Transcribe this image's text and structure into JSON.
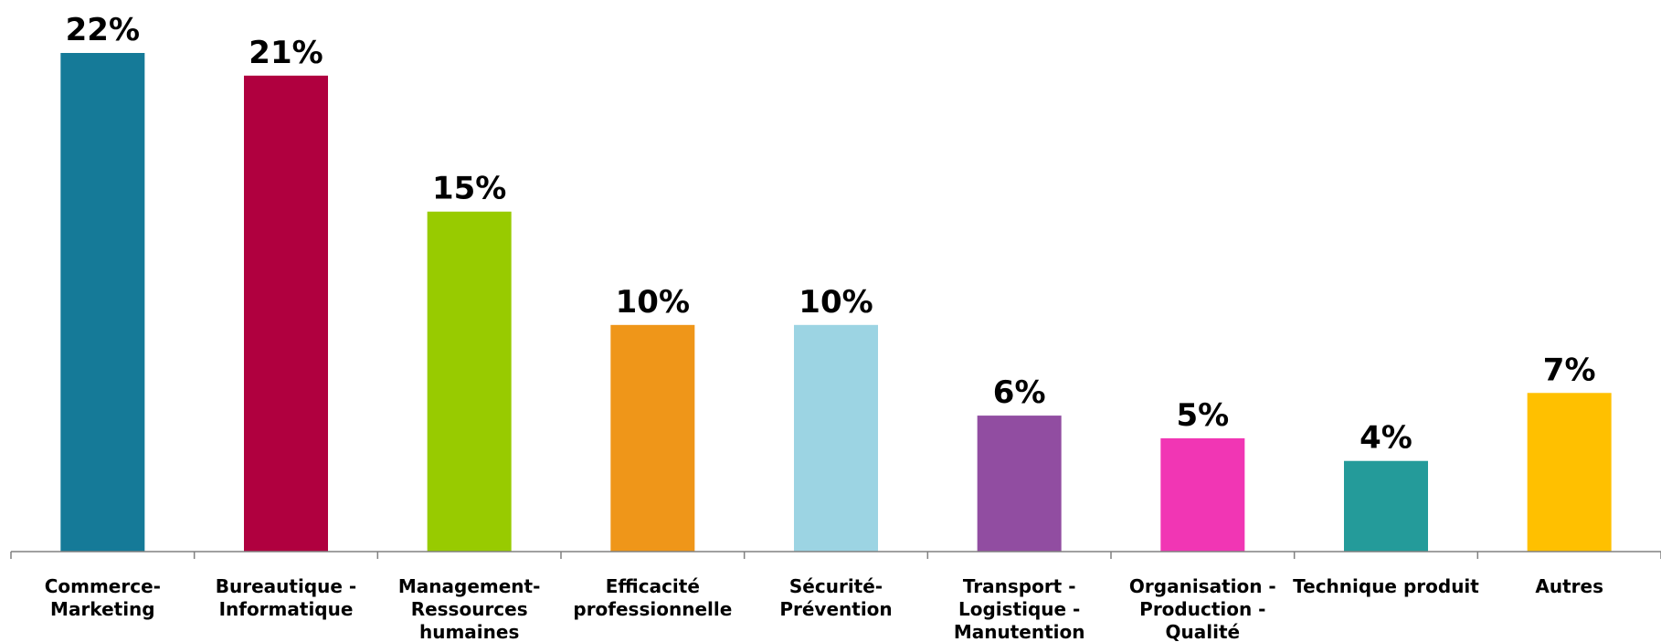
{
  "chart_data": {
    "type": "bar",
    "title": "",
    "xlabel": "",
    "ylabel": "",
    "ylim": [
      0,
      22
    ],
    "grid": false,
    "categories": [
      [
        "Commerce-",
        "Marketing"
      ],
      [
        "Bureautique -",
        "Informatique"
      ],
      [
        "Management-",
        "Ressources",
        "humaines"
      ],
      [
        "Efficacité",
        "professionnelle"
      ],
      [
        "Sécurité-",
        "Prévention"
      ],
      [
        "Transport -",
        "Logistique -",
        "Manutention"
      ],
      [
        "Organisation -",
        "Production -",
        "Qualité"
      ],
      [
        "Technique produit"
      ],
      [
        "Autres"
      ]
    ],
    "values": [
      22,
      21,
      15,
      10,
      10,
      6,
      5,
      4,
      7
    ],
    "value_labels": [
      "22%",
      "21%",
      "15%",
      "10%",
      "10%",
      "6%",
      "5%",
      "4%",
      "7%"
    ],
    "colors": [
      "#157A98",
      "#B0003F",
      "#98CB00",
      "#EF9619",
      "#9CD4E3",
      "#914DA1",
      "#F136B4",
      "#249B9A",
      "#FFC000"
    ]
  }
}
